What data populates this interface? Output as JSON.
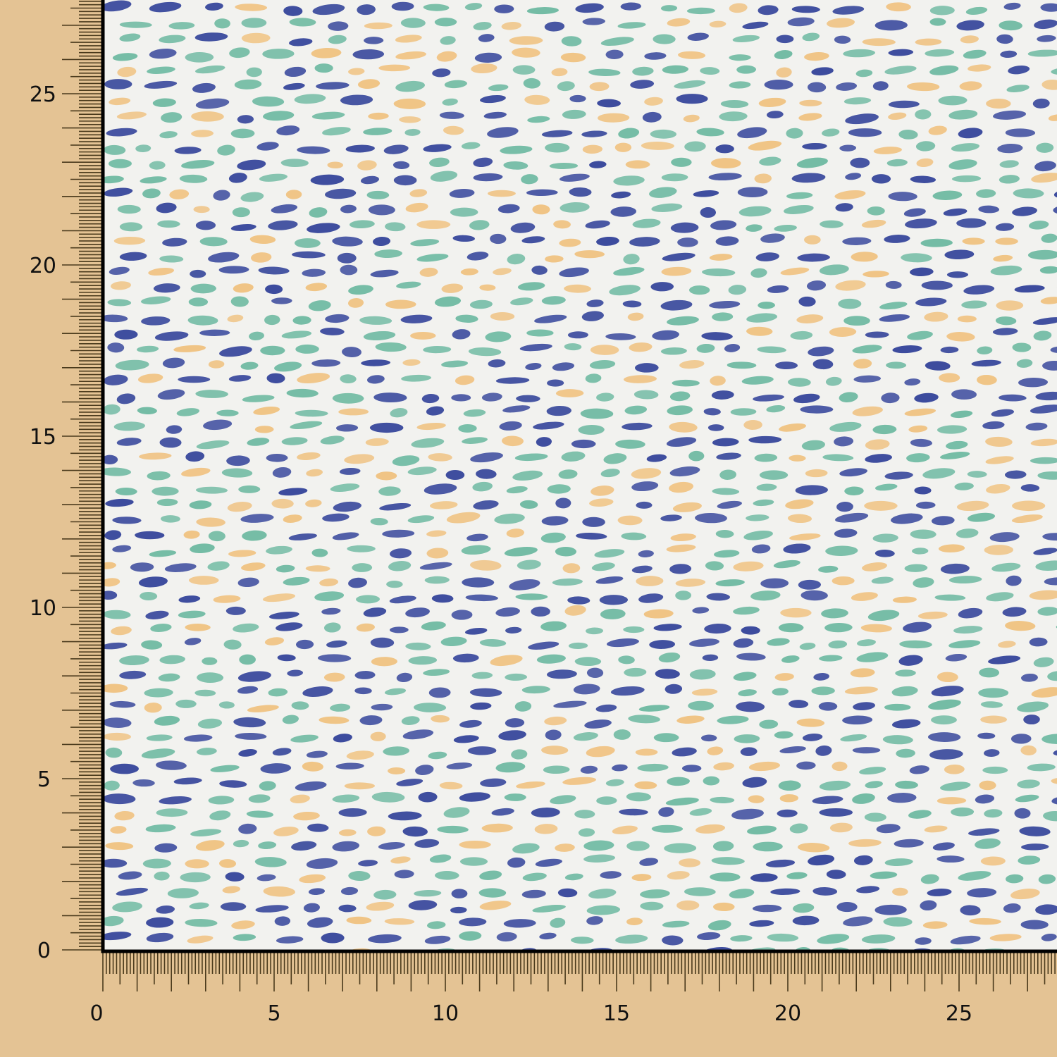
{
  "colors": {
    "ruler_background": "#e4c394",
    "tick": "#4a3a1c",
    "border": "#000000",
    "fabric_background": "#f2f2ef",
    "dash_navy": "#3d4c9e",
    "dash_teal": "#74bca5",
    "dash_peach": "#f0c485"
  },
  "rulers": {
    "x_labels": [
      "0",
      "5",
      "10",
      "15",
      "20",
      "25"
    ],
    "y_labels": [
      "0",
      "5",
      "10",
      "15",
      "20",
      "25"
    ],
    "minor_divisions_per_unit": 10
  },
  "fabric": {
    "pattern": "scattered brush dashes in navy, teal and peach on white"
  }
}
